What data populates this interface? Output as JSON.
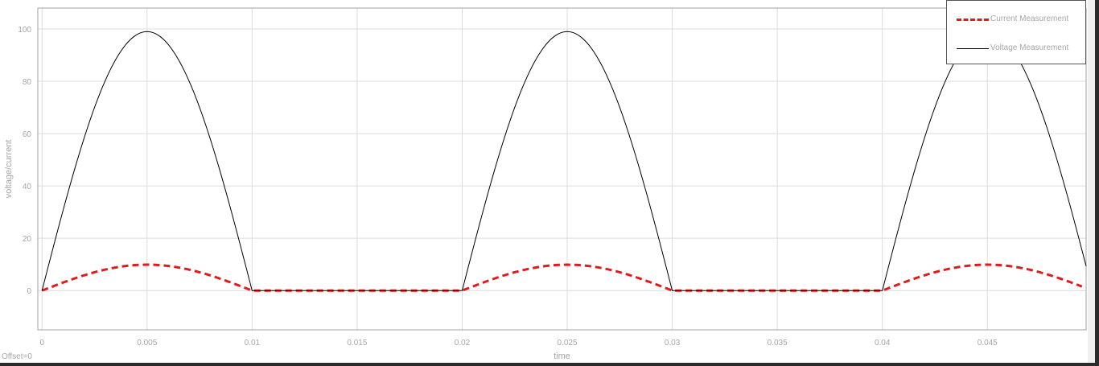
{
  "chart_data": {
    "type": "line",
    "title": "",
    "xlabel": "time",
    "ylabel": "voltage/current",
    "xlim": [
      -0.0002,
      0.0497
    ],
    "ylim": [
      -15,
      108
    ],
    "grid": true,
    "legend_position": "top-right",
    "x_ticks": [
      0,
      0.005,
      0.01,
      0.015,
      0.02,
      0.025,
      0.03,
      0.035,
      0.04,
      0.045
    ],
    "x_tick_labels": [
      "0",
      "0.005",
      "0.01",
      "0.015",
      "0.02",
      "0.025",
      "0.03",
      "0.035",
      "0.04",
      "0.045"
    ],
    "y_ticks": [
      0,
      20,
      40,
      60,
      80,
      100
    ],
    "y_tick_labels": [
      "0",
      "20",
      "40",
      "60",
      "80",
      "100"
    ],
    "series": [
      {
        "name": "Current Measurement",
        "color": "#e31a1c",
        "style": "dashed",
        "x": [
          0,
          0.0025,
          0.005,
          0.0075,
          0.01,
          0.015,
          0.02,
          0.0225,
          0.025,
          0.0275,
          0.03,
          0.035,
          0.04,
          0.0425,
          0.045,
          0.0475,
          0.0495
        ],
        "y": [
          0,
          7.0,
          9.9,
          7.0,
          0,
          0,
          0,
          7.0,
          9.9,
          7.0,
          0,
          0,
          0,
          7.0,
          9.9,
          7.0,
          1.5
        ]
      },
      {
        "name": "Voltage Measurement",
        "color": "#000000",
        "style": "solid",
        "x": [
          0,
          0.00125,
          0.0025,
          0.00375,
          0.005,
          0.00625,
          0.0075,
          0.00875,
          0.01,
          0.015,
          0.02,
          0.02125,
          0.0225,
          0.02375,
          0.025,
          0.02625,
          0.0275,
          0.02875,
          0.03,
          0.035,
          0.04,
          0.04125,
          0.0425,
          0.04375,
          0.045,
          0.04625,
          0.0475,
          0.0497
        ],
        "y": [
          0,
          37.9,
          70.0,
          91.5,
          99.0,
          91.5,
          70.0,
          37.9,
          0,
          0,
          0,
          37.9,
          70.0,
          91.5,
          99.0,
          91.5,
          70.0,
          37.9,
          0,
          0,
          0,
          37.9,
          70.0,
          91.5,
          99.0,
          91.5,
          70.0,
          8.0
        ]
      }
    ]
  },
  "footer": {
    "offset_text": "Offset=0"
  }
}
